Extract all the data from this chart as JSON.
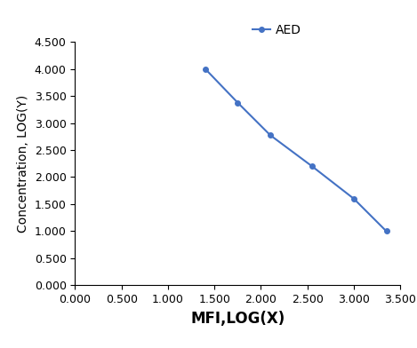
{
  "x": [
    1.4,
    1.75,
    2.1,
    2.55,
    3.0,
    3.35
  ],
  "y": [
    4.0,
    3.375,
    2.775,
    2.2,
    1.6,
    1.0
  ],
  "line_color": "#4472C4",
  "marker": "o",
  "marker_size": 4,
  "line_width": 1.5,
  "legend_label": "AED",
  "xlabel": "MFI,LOG(X)",
  "ylabel": "Concentration, LOG(Y)",
  "xlim": [
    0.0,
    3.5
  ],
  "ylim": [
    0.0,
    4.5
  ],
  "xticks": [
    0.0,
    0.5,
    1.0,
    1.5,
    2.0,
    2.5,
    3.0,
    3.5
  ],
  "yticks": [
    0.0,
    0.5,
    1.0,
    1.5,
    2.0,
    2.5,
    3.0,
    3.5,
    4.0,
    4.5
  ],
  "background_color": "#ffffff",
  "xlabel_fontsize": 12,
  "ylabel_fontsize": 10,
  "tick_fontsize": 9,
  "legend_fontsize": 10
}
